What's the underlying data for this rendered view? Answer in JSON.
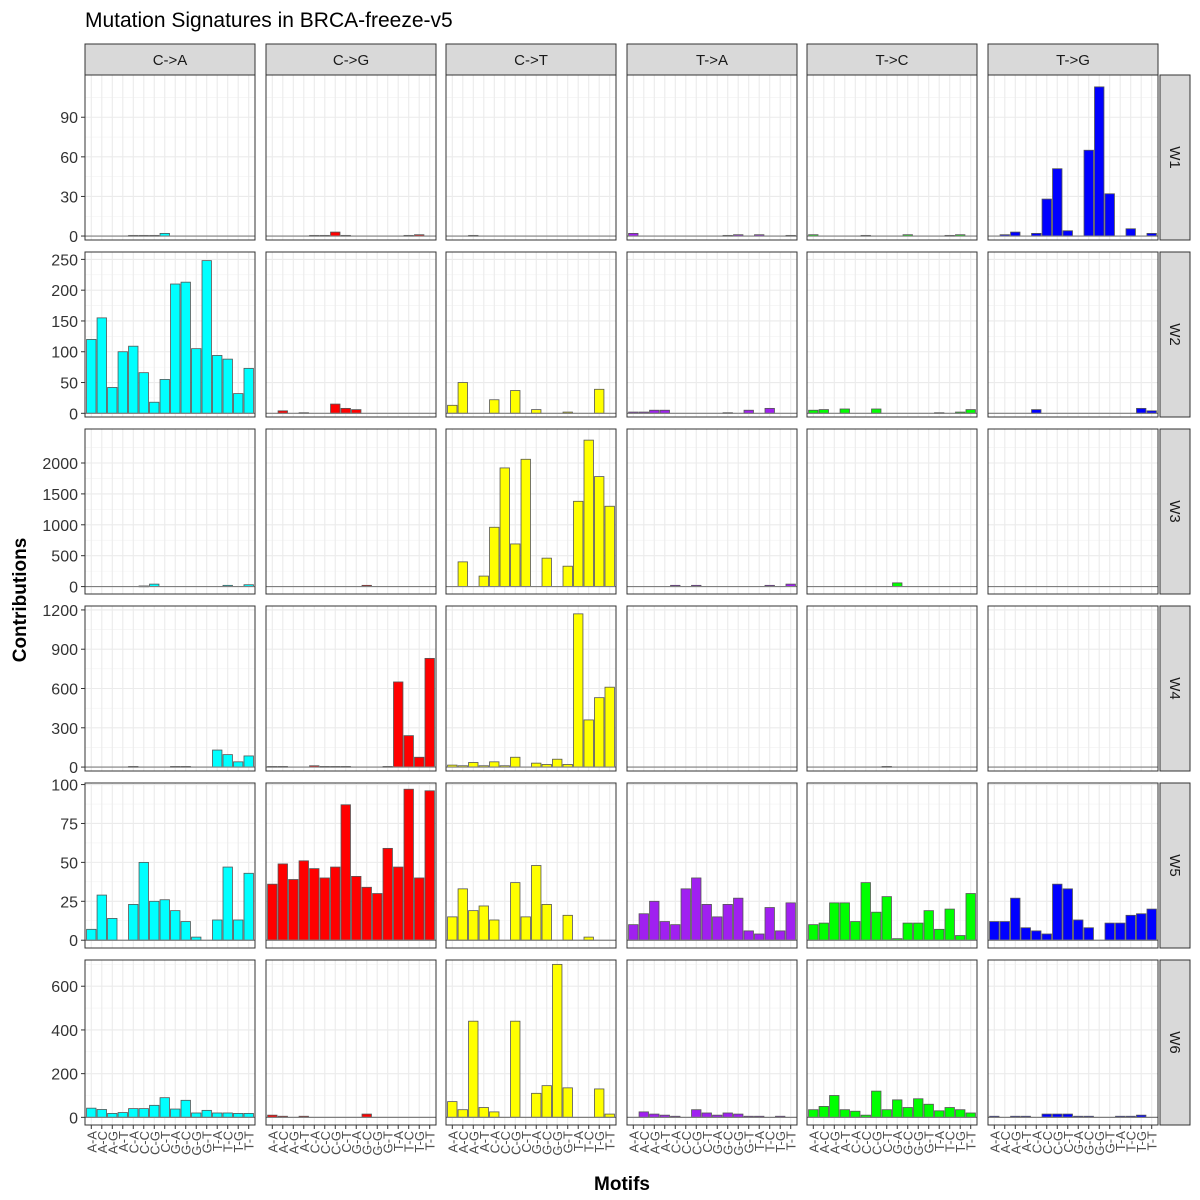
{
  "chart_data": {
    "type": "bar",
    "title": "Mutation Signatures in BRCA-freeze-v5",
    "xlabel": "Motifs",
    "ylabel": "Contributions",
    "grid": true,
    "legend": "none",
    "facet_cols": [
      "C->A",
      "C->G",
      "C->T",
      "T->A",
      "T->C",
      "T->G"
    ],
    "facet_rows": [
      "W1",
      "W2",
      "W3",
      "W4",
      "W5",
      "W6"
    ],
    "colors": {
      "C->A": "#00ffff",
      "C->G": "#ff0000",
      "C->T": "#ffff00",
      "T->A": "#a020f0",
      "T->C": "#00ff00",
      "T->G": "#0000ff"
    },
    "categories": [
      "A-A",
      "A-C",
      "A-G",
      "A-T",
      "C-A",
      "C-C",
      "C-G",
      "C-T",
      "G-A",
      "G-C",
      "G-G",
      "G-T",
      "T-A",
      "T-C",
      "T-G",
      "T-T"
    ],
    "rows": [
      {
        "name": "W1",
        "ylim": [
          -3,
          122
        ],
        "yticks": [
          0,
          30,
          60,
          90
        ],
        "ytick_labels": [
          "0",
          "30",
          "60",
          "90"
        ],
        "series": {
          "C->A": [
            0,
            0,
            0,
            0,
            0.5,
            0.5,
            0.5,
            2,
            0,
            0,
            0,
            0,
            0,
            0,
            0,
            0
          ],
          "C->G": [
            0,
            0,
            0,
            0,
            0.5,
            0.5,
            3,
            0.5,
            0,
            0,
            0,
            0,
            0,
            0.5,
            1,
            0
          ],
          "C->T": [
            0,
            0,
            0.5,
            0,
            0,
            0,
            0,
            0,
            0,
            0,
            0,
            0,
            0,
            0,
            0,
            0
          ],
          "T->A": [
            2,
            0,
            0,
            0,
            0,
            0,
            0,
            0,
            0,
            0.5,
            1,
            0,
            1,
            0,
            0,
            0.5
          ],
          "T->C": [
            1,
            0,
            0,
            0,
            0,
            0.5,
            0,
            0,
            0,
            1,
            0,
            0,
            0,
            0.5,
            1,
            0
          ],
          "T->G": [
            0,
            1,
            3,
            0,
            2,
            28,
            51,
            4,
            0,
            65,
            113,
            32,
            0,
            5.5,
            0,
            2
          ]
        }
      },
      {
        "name": "W2",
        "ylim": [
          -6,
          262
        ],
        "yticks": [
          0,
          50,
          100,
          150,
          200,
          250
        ],
        "ytick_labels": [
          "0",
          "50",
          "100",
          "150",
          "200",
          "250"
        ],
        "series": {
          "C->A": [
            120,
            155,
            42,
            100,
            109,
            66,
            18,
            55,
            210,
            213,
            105,
            248,
            94,
            88,
            32,
            73
          ],
          "C->G": [
            0,
            4,
            0,
            1,
            0,
            0,
            15,
            8,
            6,
            0,
            0,
            0,
            0,
            0,
            0,
            0
          ],
          "C->T": [
            13,
            50,
            0,
            0,
            22,
            0,
            37,
            0,
            6,
            0,
            0,
            2,
            0,
            0,
            39,
            0
          ],
          "T->A": [
            2,
            2,
            5,
            5,
            0,
            0,
            0,
            0,
            0,
            1,
            0,
            5,
            0,
            8,
            0,
            0
          ],
          "T->C": [
            5,
            6,
            0,
            7,
            0,
            0,
            7,
            0,
            0,
            0,
            0,
            0,
            1,
            0,
            2,
            6
          ],
          "T->G": [
            0,
            0,
            0,
            0,
            6,
            0,
            0,
            0,
            0,
            0,
            0,
            0,
            0,
            0,
            8,
            4
          ]
        }
      },
      {
        "name": "W3",
        "ylim": [
          -120,
          2550
        ],
        "yticks": [
          0,
          500,
          1000,
          1500,
          2000
        ],
        "ytick_labels": [
          "0",
          "500",
          "1000",
          "1500",
          "2000"
        ],
        "series": {
          "C->A": [
            0,
            0,
            0,
            0,
            0,
            10,
            40,
            0,
            0,
            0,
            0,
            0,
            0,
            20,
            0,
            30
          ],
          "C->G": [
            0,
            0,
            0,
            0,
            0,
            0,
            0,
            0,
            0,
            20,
            0,
            0,
            0,
            0,
            0,
            0
          ],
          "C->T": [
            0,
            400,
            0,
            170,
            960,
            1920,
            690,
            2060,
            0,
            460,
            0,
            330,
            1380,
            2370,
            1780,
            1300
          ],
          "T->A": [
            0,
            0,
            0,
            0,
            20,
            0,
            20,
            0,
            0,
            0,
            0,
            0,
            0,
            20,
            0,
            40
          ],
          "T->C": [
            0,
            0,
            0,
            0,
            0,
            0,
            0,
            0,
            60,
            0,
            0,
            0,
            0,
            0,
            0,
            0
          ],
          "T->G": [
            0,
            0,
            0,
            0,
            0,
            0,
            0,
            0,
            0,
            0,
            0,
            0,
            0,
            0,
            0,
            0
          ]
        }
      },
      {
        "name": "W4",
        "ylim": [
          -30,
          1230
        ],
        "yticks": [
          0,
          300,
          600,
          900,
          1200
        ],
        "ytick_labels": [
          "0",
          "300",
          "600",
          "900",
          "1200"
        ],
        "series": {
          "C->A": [
            0,
            0,
            0,
            0,
            5,
            0,
            0,
            0,
            5,
            5,
            0,
            0,
            130,
            95,
            40,
            85
          ],
          "C->G": [
            5,
            5,
            0,
            0,
            10,
            5,
            5,
            5,
            0,
            0,
            0,
            5,
            650,
            240,
            75,
            830
          ],
          "C->T": [
            15,
            10,
            35,
            10,
            40,
            10,
            75,
            0,
            30,
            20,
            60,
            20,
            1170,
            360,
            530,
            610
          ],
          "T->A": [
            0,
            0,
            0,
            0,
            0,
            0,
            0,
            0,
            0,
            0,
            0,
            0,
            0,
            0,
            0,
            0
          ],
          "T->C": [
            0,
            0,
            0,
            0,
            0,
            0,
            0,
            5,
            0,
            0,
            0,
            0,
            0,
            0,
            0,
            0
          ],
          "T->G": [
            0,
            0,
            0,
            0,
            0,
            0,
            0,
            0,
            0,
            0,
            0,
            0,
            0,
            0,
            0,
            0
          ]
        }
      },
      {
        "name": "W5",
        "ylim": [
          -5,
          101
        ],
        "yticks": [
          0,
          25,
          50,
          75,
          100
        ],
        "ytick_labels": [
          "0",
          "25",
          "50",
          "75",
          "100"
        ],
        "series": {
          "C->A": [
            7,
            29,
            14,
            0,
            23,
            50,
            25,
            26,
            19,
            12,
            2,
            0,
            13,
            47,
            13,
            43
          ],
          "C->G": [
            36,
            49,
            39,
            51,
            46,
            40,
            47,
            87,
            41,
            34,
            30,
            59,
            47,
            97,
            40,
            96
          ],
          "C->T": [
            15,
            33,
            19,
            22,
            13,
            0,
            37,
            15,
            48,
            23,
            0,
            16,
            0,
            2,
            0,
            0
          ],
          "T->A": [
            10,
            17,
            25,
            12,
            10,
            33,
            40,
            23,
            15,
            23,
            27,
            6,
            4,
            21,
            6,
            24
          ],
          "T->C": [
            10,
            11,
            24,
            24,
            12,
            37,
            18,
            28,
            1,
            11,
            11,
            19,
            7,
            20,
            3,
            30
          ],
          "T->G": [
            12,
            12,
            27,
            8,
            6,
            4,
            36,
            33,
            13,
            8,
            0,
            11,
            11,
            16,
            17,
            20
          ]
        }
      },
      {
        "name": "W6",
        "ylim": [
          -35,
          720
        ],
        "yticks": [
          0,
          200,
          400,
          600
        ],
        "ytick_labels": [
          "0",
          "200",
          "400",
          "600"
        ],
        "series": {
          "C->A": [
            42,
            36,
            18,
            22,
            40,
            40,
            55,
            90,
            38,
            78,
            20,
            32,
            20,
            20,
            18,
            18
          ],
          "C->G": [
            10,
            5,
            0,
            5,
            0,
            0,
            0,
            0,
            0,
            15,
            0,
            0,
            0,
            0,
            0,
            0
          ],
          "C->T": [
            72,
            35,
            440,
            45,
            25,
            0,
            440,
            0,
            110,
            145,
            700,
            135,
            0,
            0,
            130,
            15
          ],
          "T->A": [
            0,
            25,
            15,
            10,
            5,
            0,
            35,
            20,
            10,
            20,
            15,
            5,
            5,
            0,
            5,
            0
          ],
          "T->C": [
            35,
            50,
            100,
            35,
            28,
            10,
            120,
            35,
            80,
            45,
            85,
            60,
            30,
            45,
            35,
            20
          ],
          "T->G": [
            5,
            0,
            5,
            5,
            0,
            15,
            15,
            15,
            5,
            5,
            0,
            0,
            5,
            5,
            10,
            0
          ]
        }
      }
    ]
  }
}
